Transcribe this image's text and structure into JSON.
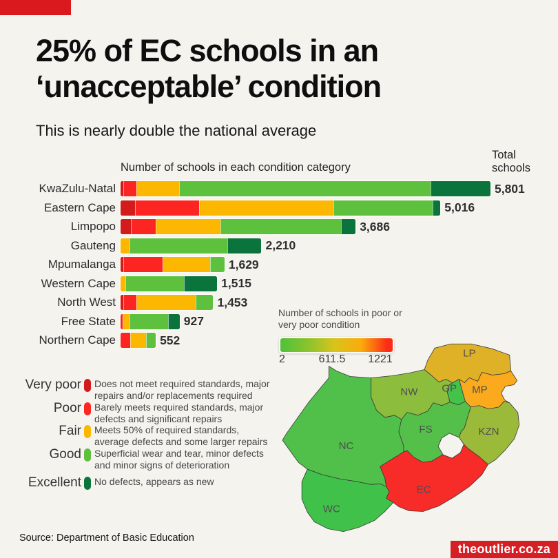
{
  "page": {
    "title_line1": "25% of EC schools in an",
    "title_line2": "‘unacceptable’ condition",
    "subtitle": "This is nearly double the national average",
    "source": "Source: Department of Basic Education",
    "site_badge": "theoutlier.co.za",
    "background_color": "#f4f3ee",
    "accent_red": "#d9191d",
    "badge_red": "#d41f24"
  },
  "chart_data": [
    {
      "type": "bar",
      "orientation": "horizontal",
      "stacked": true,
      "title": "Number of schools in each condition category",
      "totals_header": "Total schools",
      "categories": [
        "KwaZulu-Natal",
        "Eastern Cape",
        "Limpopo",
        "Gauteng",
        "Mpumalanga",
        "Western Cape",
        "North West",
        "Free State",
        "Northern Cape"
      ],
      "totals": [
        5801,
        5016,
        3686,
        2210,
        1629,
        1515,
        1453,
        927,
        552
      ],
      "totals_display": [
        "5,801",
        "5,016",
        "3,686",
        "2,210",
        "1,629",
        "1,515",
        "1,453",
        "927",
        "552"
      ],
      "x_max": 5801,
      "series": [
        {
          "name": "Very poor",
          "color": "#d31b1b",
          "values": [
            40,
            227,
            162,
            0,
            45,
            0,
            43,
            0,
            0
          ]
        },
        {
          "name": "Poor",
          "color": "#fd2522",
          "values": [
            205,
            1005,
            389,
            0,
            610,
            0,
            210,
            30,
            150
          ]
        },
        {
          "name": "Fair",
          "color": "#fcb700",
          "values": [
            670,
            2105,
            1010,
            145,
            745,
            75,
            930,
            110,
            250
          ]
        },
        {
          "name": "Good",
          "color": "#5ec13e",
          "values": [
            3945,
            1560,
            1893,
            1530,
            229,
            915,
            270,
            605,
            152
          ]
        },
        {
          "name": "Excellent",
          "color": "#0b743c",
          "values": [
            941,
            119,
            232,
            535,
            0,
            525,
            0,
            182,
            0
          ]
        }
      ]
    },
    {
      "type": "heatmap",
      "title": "Number of schools in poor or very poor condition",
      "scale_min": "2",
      "scale_mid": "611.5",
      "scale_max": "1221",
      "gradient": [
        "#4fc13a",
        "#8cc32c",
        "#d8c31c",
        "#fbab0c",
        "#fc2c16"
      ],
      "provinces": [
        {
          "code": "LP",
          "color": "#dfb126"
        },
        {
          "code": "MP",
          "color": "#fbaa1e"
        },
        {
          "code": "NW",
          "color": "#8dbd3c"
        },
        {
          "code": "GP",
          "color": "#44c34a"
        },
        {
          "code": "FS",
          "color": "#54c04a"
        },
        {
          "code": "KZN",
          "color": "#9cba39"
        },
        {
          "code": "NC",
          "color": "#50c04b"
        },
        {
          "code": "EC",
          "color": "#f72b28"
        },
        {
          "code": "WC",
          "color": "#40c24a"
        }
      ]
    }
  ],
  "condition_legend": {
    "items": [
      {
        "label": "Very poor",
        "color": "#d31b1b",
        "description": "Does not meet required standards, major repairs and/or replacements required"
      },
      {
        "label": "Poor",
        "color": "#fd2522",
        "description": "Barely meets required standards, major defects and significant repairs"
      },
      {
        "label": "Fair",
        "color": "#fcb700",
        "description": "Meets 50% of required standards, average defects and some larger repairs"
      },
      {
        "label": "Good",
        "color": "#5ec13e",
        "description": "Superficial wear and tear, minor defects and minor signs of deterioration"
      },
      {
        "label": "Excellent",
        "color": "#0b743c",
        "description": "No defects, appears as new"
      }
    ]
  }
}
